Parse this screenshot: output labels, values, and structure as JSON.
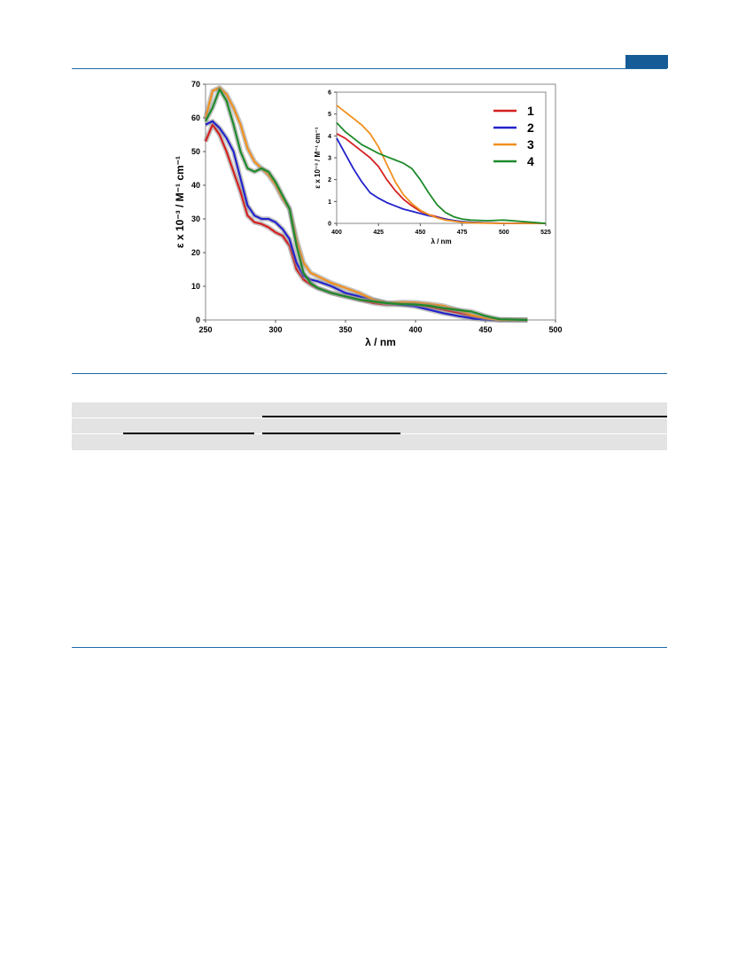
{
  "page": {
    "accent_color": "#1f6aa5",
    "tab_color": "#155b95",
    "table_shading": "#e3e3e3"
  },
  "chart_data": [
    {
      "type": "line",
      "title": "",
      "xlabel": "λ / nm",
      "ylabel": "ε x 10⁻³ / M⁻¹ cm⁻¹",
      "xlim": [
        250,
        500
      ],
      "ylim": [
        0,
        70
      ],
      "xticks": [
        250,
        300,
        350,
        400,
        450,
        500
      ],
      "yticks": [
        0,
        10,
        20,
        30,
        40,
        50,
        60,
        70
      ],
      "grid": false,
      "series": [
        {
          "name": "1",
          "color": "#d42020",
          "x": [
            250,
            255,
            260,
            265,
            270,
            275,
            280,
            285,
            290,
            295,
            300,
            305,
            310,
            315,
            320,
            325,
            330,
            340,
            350,
            360,
            370,
            380,
            390,
            400,
            410,
            420,
            430,
            440,
            450,
            460,
            480
          ],
          "y": [
            53,
            58,
            55,
            50,
            44,
            38,
            31,
            29,
            28.5,
            27.5,
            26,
            25,
            22,
            15,
            12,
            10.5,
            9.5,
            8,
            7,
            6,
            5,
            4.5,
            4.6,
            4.5,
            3.8,
            3,
            2.2,
            1,
            0.3,
            0,
            0
          ]
        },
        {
          "name": "2",
          "color": "#2222cc",
          "x": [
            250,
            255,
            260,
            265,
            270,
            275,
            280,
            285,
            290,
            295,
            300,
            305,
            310,
            315,
            320,
            325,
            330,
            340,
            350,
            360,
            370,
            380,
            390,
            400,
            410,
            420,
            430,
            440,
            450,
            460,
            480
          ],
          "y": [
            58,
            59,
            57,
            54,
            50,
            42,
            34,
            31,
            30,
            30,
            29,
            27,
            24,
            17,
            13,
            12,
            11.5,
            10,
            8,
            7,
            6,
            5,
            4.5,
            4,
            3,
            2,
            1.2,
            0.5,
            0.1,
            0,
            0
          ]
        },
        {
          "name": "3",
          "color": "#f0901e",
          "x": [
            250,
            255,
            260,
            265,
            270,
            275,
            280,
            285,
            290,
            295,
            300,
            305,
            310,
            315,
            320,
            325,
            330,
            340,
            350,
            360,
            370,
            380,
            390,
            400,
            410,
            420,
            430,
            440,
            450,
            460,
            480
          ],
          "y": [
            60,
            68,
            69,
            67,
            63,
            58,
            51,
            47,
            45,
            43,
            40,
            36,
            33,
            24,
            17,
            14,
            13,
            11,
            9.5,
            8,
            6,
            5,
            5.3,
            5.2,
            4.8,
            4.2,
            3,
            1.5,
            0.5,
            0,
            0
          ]
        },
        {
          "name": "4",
          "color": "#1e8a2a",
          "x": [
            250,
            255,
            260,
            265,
            270,
            275,
            280,
            285,
            290,
            295,
            300,
            305,
            310,
            315,
            320,
            325,
            330,
            340,
            350,
            360,
            370,
            380,
            390,
            400,
            410,
            420,
            430,
            440,
            450,
            460,
            480
          ],
          "y": [
            59,
            63,
            68.5,
            65,
            58,
            50,
            45,
            44,
            45,
            44,
            41,
            37,
            33,
            22,
            14,
            11,
            9.5,
            8,
            7,
            6,
            5.5,
            5,
            4.7,
            4.6,
            4.2,
            3.5,
            3,
            2.5,
            1.2,
            0.2,
            0
          ]
        }
      ]
    },
    {
      "type": "line",
      "title": "",
      "xlabel": "λ / nm",
      "ylabel": "ε x 10⁻³ / M⁻¹ cm⁻¹",
      "xlim": [
        400,
        525
      ],
      "ylim": [
        0,
        6
      ],
      "xticks": [
        400,
        425,
        450,
        475,
        500,
        525
      ],
      "yticks": [
        0,
        1,
        2,
        3,
        4,
        5,
        6
      ],
      "legend": "top-right",
      "grid": false,
      "series": [
        {
          "name": "1",
          "color": "#d42020",
          "x": [
            400,
            405,
            410,
            415,
            420,
            425,
            430,
            435,
            440,
            445,
            450,
            455,
            460,
            465,
            470,
            475,
            480,
            490,
            500,
            525
          ],
          "y": [
            4.1,
            3.9,
            3.6,
            3.3,
            3.0,
            2.6,
            2.0,
            1.5,
            1.1,
            0.8,
            0.55,
            0.4,
            0.3,
            0.2,
            0.12,
            0.07,
            0.05,
            0.02,
            0,
            0
          ]
        },
        {
          "name": "2",
          "color": "#2222cc",
          "x": [
            400,
            405,
            410,
            415,
            420,
            425,
            430,
            435,
            440,
            445,
            450,
            455,
            460,
            465,
            470,
            475,
            480,
            490,
            500,
            525
          ],
          "y": [
            3.9,
            3.2,
            2.5,
            1.9,
            1.4,
            1.15,
            0.95,
            0.8,
            0.65,
            0.55,
            0.45,
            0.35,
            0.28,
            0.2,
            0.13,
            0.08,
            0.05,
            0.02,
            0,
            0
          ]
        },
        {
          "name": "3",
          "color": "#f0901e",
          "x": [
            400,
            405,
            410,
            415,
            420,
            425,
            430,
            435,
            440,
            445,
            450,
            455,
            460,
            465,
            470,
            475,
            480,
            490,
            500,
            525
          ],
          "y": [
            5.4,
            5.1,
            4.8,
            4.5,
            4.1,
            3.5,
            2.7,
            1.9,
            1.3,
            0.9,
            0.6,
            0.4,
            0.25,
            0.15,
            0.1,
            0.05,
            0.03,
            0.01,
            0,
            0
          ]
        },
        {
          "name": "4",
          "color": "#1e8a2a",
          "x": [
            400,
            405,
            410,
            415,
            420,
            425,
            430,
            435,
            440,
            445,
            450,
            455,
            460,
            465,
            470,
            475,
            480,
            490,
            500,
            525
          ],
          "y": [
            4.6,
            4.2,
            3.9,
            3.6,
            3.4,
            3.2,
            3.05,
            2.9,
            2.75,
            2.5,
            2.0,
            1.4,
            0.85,
            0.5,
            0.3,
            0.2,
            0.15,
            0.12,
            0.15,
            0
          ]
        }
      ]
    }
  ]
}
